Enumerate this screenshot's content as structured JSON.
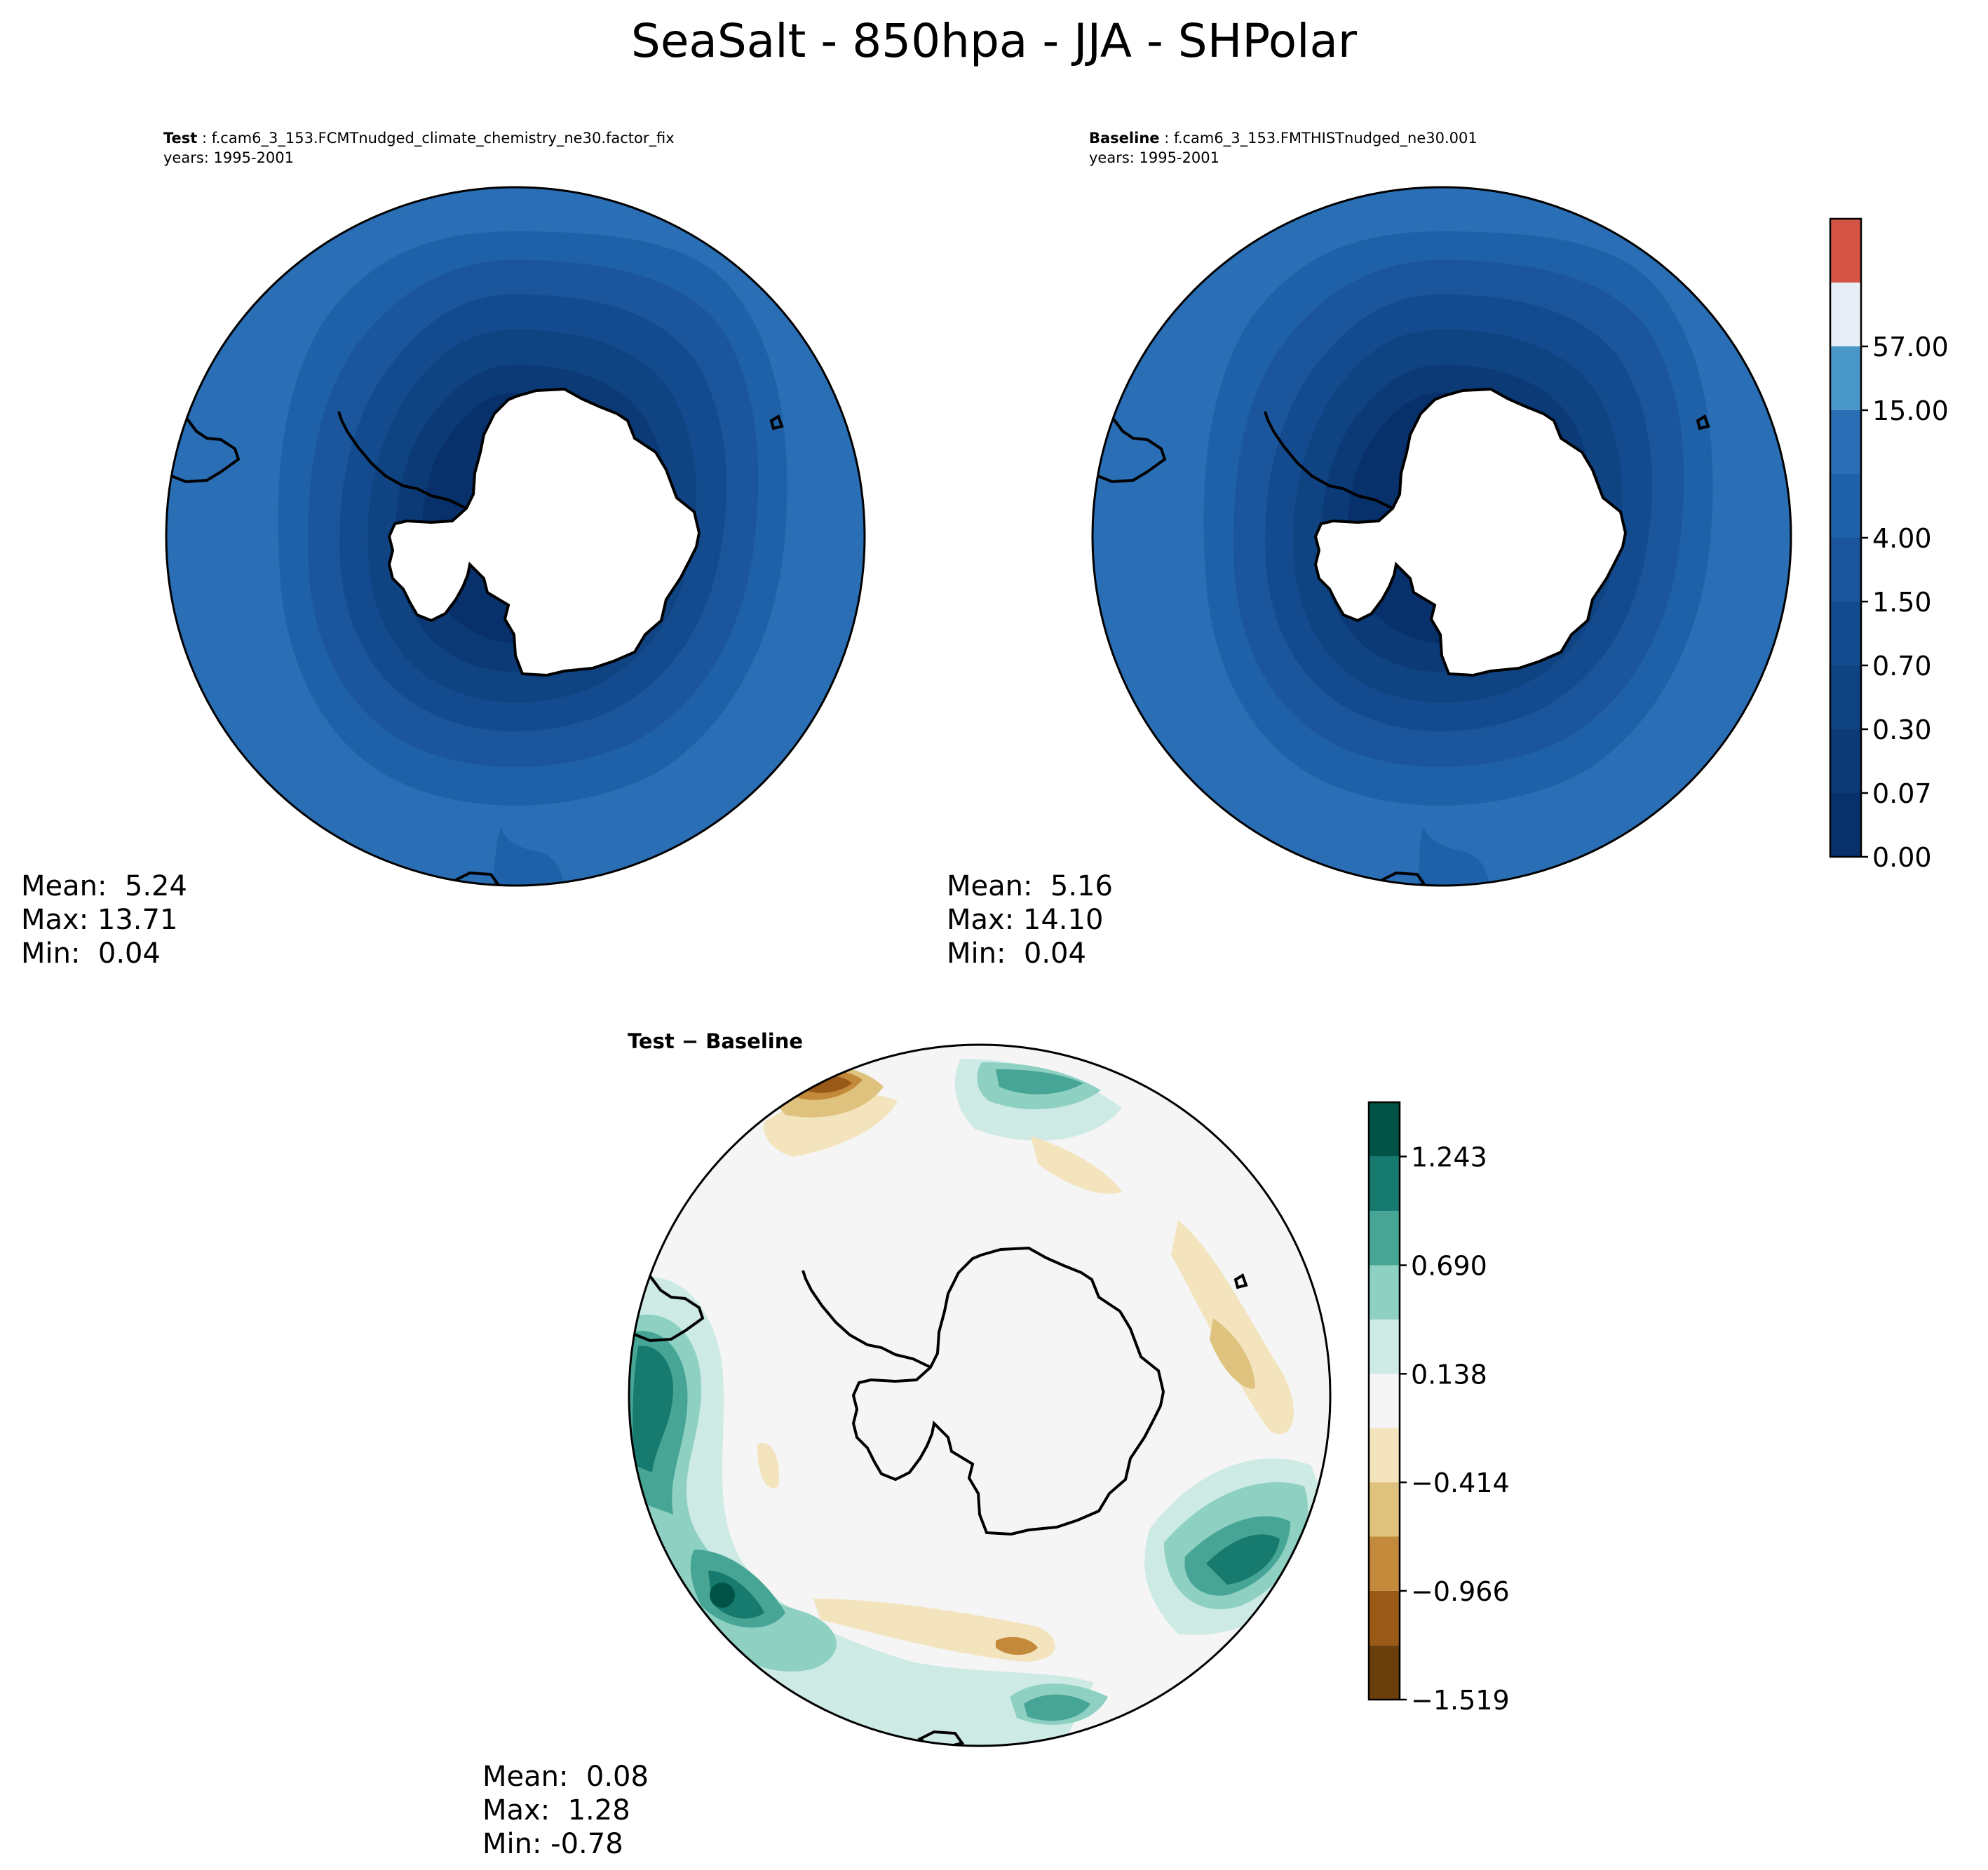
{
  "figure": {
    "title": "SeaSalt - 850hpa - JJA - SHPolar"
  },
  "colors": {
    "frame": "#000000",
    "coast": "#000000",
    "land": "#ffffff"
  },
  "chart_data": [
    {
      "type": "heatmap",
      "panel": "test",
      "header_label": "Test",
      "header_text": "f.cam6_3_153.FCMTnudged_climate_chemistry_ne30.factor_fix",
      "years": "years: 1995-2001",
      "projection": "south-polar-stereographic",
      "stats": {
        "mean": "Mean:  5.24",
        "max": "Max: 13.71",
        "min": "Min:  0.04"
      },
      "field_levels": [
        0.07,
        0.3,
        0.7,
        1.5,
        4.0,
        15.0
      ],
      "level_colors": [
        "#08306b",
        "#0b3a77",
        "#0f4382",
        "#134b8e",
        "#1f61a8",
        "#2a6eb5"
      ]
    },
    {
      "type": "heatmap",
      "panel": "baseline",
      "header_label": "Baseline",
      "header_text": "f.cam6_3_153.FMTHISTnudged_ne30.001",
      "years": "years: 1995-2001",
      "projection": "south-polar-stereographic",
      "stats": {
        "mean": "Mean:  5.16",
        "max": "Max: 14.10",
        "min": "Min:  0.04"
      },
      "field_levels": [
        0.07,
        0.3,
        0.7,
        1.5,
        4.0,
        15.0
      ],
      "level_colors": [
        "#08306b",
        "#0b3a77",
        "#0f4382",
        "#134b8e",
        "#1f61a8",
        "#2a6eb5"
      ]
    },
    {
      "type": "heatmap",
      "panel": "difference",
      "header_label": "Test − Baseline",
      "projection": "south-polar-stereographic",
      "stats": {
        "mean": "Mean:  0.08",
        "max": "Max:  1.28",
        "min": "Min: -0.78"
      },
      "anomalies": [
        {
          "region": "west-coast",
          "value": 1.1
        },
        {
          "region": "lower-left",
          "value": 1.28
        },
        {
          "region": "right-lower",
          "value": 1.0
        },
        {
          "region": "top-center",
          "value": 0.7
        },
        {
          "region": "bottom-center",
          "value": 0.9
        },
        {
          "region": "top-left",
          "value": -0.78
        },
        {
          "region": "ring-south",
          "value": -0.45
        },
        {
          "region": "east-band",
          "value": -0.4
        }
      ]
    }
  ],
  "colorbars": [
    {
      "name": "absolute",
      "levels": [
        0.0,
        0.07,
        0.3,
        0.7,
        1.5,
        4.0,
        15.0,
        57.0
      ],
      "tick_labels": [
        "0.00",
        "0.07",
        "0.30",
        "0.70",
        "1.50",
        "4.00",
        "15.00",
        "57.00"
      ],
      "colors": [
        "#08306b",
        "#0b3a77",
        "#0f4382",
        "#134b8e",
        "#1b569c",
        "#1f61a8",
        "#2a6eb5",
        "#4a97c9",
        "#e8eef6",
        "#d45545"
      ]
    },
    {
      "name": "difference",
      "levels": [
        -1.519,
        -1.243,
        -0.966,
        -0.69,
        -0.414,
        -0.138,
        0.138,
        0.414,
        0.69,
        0.966,
        1.243,
        1.519
      ],
      "tick_labels": [
        "−1.519",
        "−0.966",
        "−0.414",
        "0.138",
        "0.690",
        "1.243"
      ],
      "tick_values": [
        -1.519,
        -0.966,
        -0.414,
        0.138,
        0.69,
        1.243
      ],
      "colors": [
        "#6b3f0a",
        "#9a5a17",
        "#c48a3c",
        "#dfc27d",
        "#f3e4bd",
        "#f4f5f4",
        "#cdeae4",
        "#8ed0c2",
        "#47a596",
        "#167a6e",
        "#005346"
      ]
    }
  ]
}
